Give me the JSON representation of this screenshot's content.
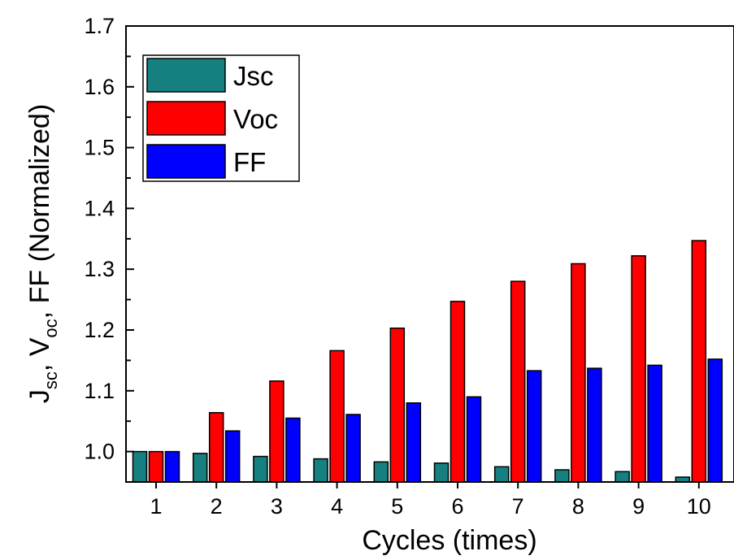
{
  "chart_data": {
    "type": "bar",
    "categories": [
      "1",
      "2",
      "3",
      "4",
      "5",
      "6",
      "7",
      "8",
      "9",
      "10"
    ],
    "series": [
      {
        "name": "Jsc",
        "color": "#168080",
        "values": [
          1.0,
          0.997,
          0.992,
          0.988,
          0.983,
          0.981,
          0.975,
          0.97,
          0.967,
          0.958
        ]
      },
      {
        "name": "Voc",
        "color": "#ff0000",
        "values": [
          1.0,
          1.064,
          1.116,
          1.166,
          1.203,
          1.247,
          1.28,
          1.309,
          1.322,
          1.347
        ]
      },
      {
        "name": "FF",
        "color": "#0000ff",
        "values": [
          1.0,
          1.034,
          1.055,
          1.061,
          1.08,
          1.09,
          1.133,
          1.137,
          1.142,
          1.152
        ]
      }
    ],
    "ylim": [
      0.95,
      1.7
    ],
    "yticks": [
      "1.0",
      "1.1",
      "1.2",
      "1.3",
      "1.4",
      "1.5",
      "1.6",
      "1.7"
    ],
    "xlabel": "Cycles (times)",
    "ylabel": {
      "parts": [
        "J",
        "sc",
        ", V",
        "oc",
        ", FF (Normalized)"
      ]
    },
    "legend_position": "top-left",
    "grid": false
  }
}
